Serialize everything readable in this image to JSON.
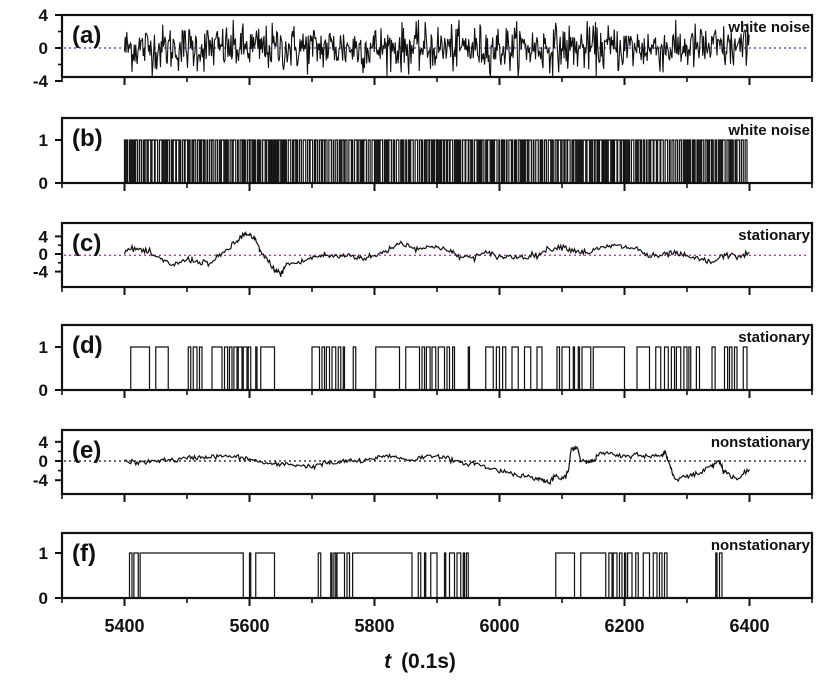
{
  "chart_data": {
    "type": "line",
    "xlabel_var": "t",
    "xlabel_unit": "(0.1s)",
    "xlim": [
      5300,
      6500
    ],
    "xticks": [
      5400,
      5600,
      5800,
      6000,
      6200,
      6400
    ],
    "grid": false,
    "panels": [
      {
        "tag": "(a)",
        "note": "white noise",
        "kind": "continuous",
        "ylim": [
          -4,
          4
        ],
        "yticks": [
          4,
          0,
          -4
        ],
        "ref_line": 0,
        "ref_color": "#3a3aa8",
        "x_start": 5400,
        "x_end": 6400,
        "description_values": {
          "style": "white-noise",
          "amplitude": 1.4
        }
      },
      {
        "tag": "(b)",
        "note": "white noise",
        "kind": "binary",
        "ylim": [
          0,
          1
        ],
        "yticks": [
          1,
          0
        ],
        "x_start": 5400,
        "x_end": 6400,
        "segments": "dense"
      },
      {
        "tag": "(c)",
        "note": "stationary",
        "kind": "continuous",
        "ylim": [
          -5,
          5
        ],
        "yticks": [
          4,
          0,
          -4
        ],
        "ref_line": -0.3,
        "ref_color": "#b03ab0",
        "x_start": 5400,
        "x_end": 6400,
        "points": [
          [
            5400,
            0.8
          ],
          [
            5420,
            1.2
          ],
          [
            5440,
            0.2
          ],
          [
            5460,
            -1.5
          ],
          [
            5480,
            -2.5
          ],
          [
            5500,
            -1.2
          ],
          [
            5520,
            -1.8
          ],
          [
            5540,
            -2.0
          ],
          [
            5560,
            0.5
          ],
          [
            5580,
            2.8
          ],
          [
            5590,
            4.5
          ],
          [
            5600,
            4.2
          ],
          [
            5610,
            3.0
          ],
          [
            5620,
            0.0
          ],
          [
            5640,
            -3.5
          ],
          [
            5650,
            -4.6
          ],
          [
            5660,
            -2.2
          ],
          [
            5680,
            -2.0
          ],
          [
            5700,
            -0.8
          ],
          [
            5720,
            -0.3
          ],
          [
            5740,
            -0.6
          ],
          [
            5760,
            -0.2
          ],
          [
            5780,
            -1.0
          ],
          [
            5800,
            -0.5
          ],
          [
            5820,
            0.8
          ],
          [
            5840,
            2.6
          ],
          [
            5860,
            1.6
          ],
          [
            5880,
            1.2
          ],
          [
            5900,
            1.9
          ],
          [
            5920,
            0.5
          ],
          [
            5940,
            -0.8
          ],
          [
            5960,
            -0.6
          ],
          [
            5980,
            0.2
          ],
          [
            6000,
            -0.6
          ],
          [
            6020,
            -0.7
          ],
          [
            6040,
            -0.6
          ],
          [
            6060,
            -0.2
          ],
          [
            6080,
            1.2
          ],
          [
            6100,
            1.7
          ],
          [
            6120,
            0.8
          ],
          [
            6140,
            0.3
          ],
          [
            6160,
            1.2
          ],
          [
            6180,
            1.9
          ],
          [
            6200,
            1.6
          ],
          [
            6220,
            1.2
          ],
          [
            6240,
            -0.6
          ],
          [
            6260,
            -0.4
          ],
          [
            6280,
            0.3
          ],
          [
            6300,
            -0.7
          ],
          [
            6320,
            -1.2
          ],
          [
            6340,
            -2.0
          ],
          [
            6360,
            -0.2
          ],
          [
            6380,
            -0.6
          ],
          [
            6400,
            0.2
          ]
        ]
      },
      {
        "tag": "(d)",
        "note": "stationary",
        "kind": "binary",
        "ylim": [
          0,
          1
        ],
        "yticks": [
          1,
          0
        ],
        "x_start": 5400,
        "x_end": 6400,
        "segments": [
          [
            5410,
            5440
          ],
          [
            5450,
            5470
          ],
          [
            5502,
            5506
          ],
          [
            5510,
            5516
          ],
          [
            5520,
            5524
          ],
          [
            5540,
            5556
          ],
          [
            5560,
            5565
          ],
          [
            5568,
            5572
          ],
          [
            5575,
            5580
          ],
          [
            5582,
            5588
          ],
          [
            5590,
            5596
          ],
          [
            5598,
            5602
          ],
          [
            5610,
            5612
          ],
          [
            5618,
            5640
          ],
          [
            5700,
            5712
          ],
          [
            5716,
            5720
          ],
          [
            5723,
            5728
          ],
          [
            5732,
            5738
          ],
          [
            5742,
            5746
          ],
          [
            5750,
            5752
          ],
          [
            5766,
            5770
          ],
          [
            5802,
            5840
          ],
          [
            5850,
            5872
          ],
          [
            5876,
            5880
          ],
          [
            5883,
            5889
          ],
          [
            5892,
            5898
          ],
          [
            5902,
            5912
          ],
          [
            5916,
            5920
          ],
          [
            5925,
            5928
          ],
          [
            5950,
            5952
          ],
          [
            5978,
            5990
          ],
          [
            5995,
            6000
          ],
          [
            6005,
            6010
          ],
          [
            6020,
            6030
          ],
          [
            6040,
            6050
          ],
          [
            6060,
            6068
          ],
          [
            6092,
            6096
          ],
          [
            6100,
            6112
          ],
          [
            6118,
            6120
          ],
          [
            6126,
            6128
          ],
          [
            6132,
            6146
          ],
          [
            6150,
            6200
          ],
          [
            6220,
            6240
          ],
          [
            6250,
            6258
          ],
          [
            6264,
            6270
          ],
          [
            6275,
            6280
          ],
          [
            6283,
            6290
          ],
          [
            6295,
            6300
          ],
          [
            6303,
            6306
          ],
          [
            6315,
            6320
          ],
          [
            6340,
            6345
          ],
          [
            6360,
            6365
          ],
          [
            6368,
            6372
          ],
          [
            6376,
            6380
          ],
          [
            6390,
            6396
          ]
        ]
      },
      {
        "tag": "(e)",
        "note": "nonstationary",
        "kind": "continuous",
        "ylim": [
          -5,
          5
        ],
        "yticks": [
          4,
          0,
          -4
        ],
        "ref_line": 0,
        "ref_color": "#111111",
        "x_start": 5400,
        "x_end": 6400,
        "points": [
          [
            5400,
            0.0
          ],
          [
            5420,
            -0.4
          ],
          [
            5440,
            -0.2
          ],
          [
            5460,
            0.3
          ],
          [
            5480,
            0.1
          ],
          [
            5500,
            0.6
          ],
          [
            5520,
            0.8
          ],
          [
            5540,
            0.9
          ],
          [
            5560,
            1.0
          ],
          [
            5580,
            0.8
          ],
          [
            5600,
            0.4
          ],
          [
            5620,
            -0.3
          ],
          [
            5640,
            -0.8
          ],
          [
            5660,
            -0.6
          ],
          [
            5680,
            -0.9
          ],
          [
            5700,
            -1.2
          ],
          [
            5720,
            -0.4
          ],
          [
            5740,
            -0.5
          ],
          [
            5760,
            0.2
          ],
          [
            5780,
            -0.2
          ],
          [
            5800,
            0.6
          ],
          [
            5820,
            1.2
          ],
          [
            5840,
            0.6
          ],
          [
            5860,
            0.2
          ],
          [
            5880,
            0.9
          ],
          [
            5900,
            1.2
          ],
          [
            5920,
            0.4
          ],
          [
            5940,
            -0.6
          ],
          [
            5960,
            -0.4
          ],
          [
            5980,
            -1.4
          ],
          [
            6000,
            -2.0
          ],
          [
            6020,
            -2.5
          ],
          [
            6040,
            -3.2
          ],
          [
            6060,
            -3.6
          ],
          [
            6070,
            -4.0
          ],
          [
            6080,
            -4.6
          ],
          [
            6090,
            -3.0
          ],
          [
            6100,
            -4.0
          ],
          [
            6110,
            -2.2
          ],
          [
            6115,
            2.6
          ],
          [
            6125,
            2.8
          ],
          [
            6130,
            0.0
          ],
          [
            6140,
            0.2
          ],
          [
            6150,
            -0.2
          ],
          [
            6160,
            1.6
          ],
          [
            6180,
            1.4
          ],
          [
            6200,
            0.8
          ],
          [
            6220,
            1.5
          ],
          [
            6240,
            0.8
          ],
          [
            6260,
            1.2
          ],
          [
            6265,
            2.0
          ],
          [
            6270,
            0.0
          ],
          [
            6280,
            -3.6
          ],
          [
            6300,
            -3.2
          ],
          [
            6320,
            -2.6
          ],
          [
            6340,
            -0.8
          ],
          [
            6350,
            0.2
          ],
          [
            6360,
            -2.2
          ],
          [
            6380,
            -3.8
          ],
          [
            6400,
            -1.8
          ]
        ]
      },
      {
        "tag": "(f)",
        "note": "nonstationary",
        "kind": "binary",
        "ylim": [
          0,
          1
        ],
        "yticks": [
          1,
          0
        ],
        "x_start": 5400,
        "x_end": 6400,
        "segments": [
          [
            5408,
            5412
          ],
          [
            5415,
            5422
          ],
          [
            5425,
            5590
          ],
          [
            5600,
            5602
          ],
          [
            5610,
            5640
          ],
          [
            5710,
            5714
          ],
          [
            5730,
            5732
          ],
          [
            5735,
            5738
          ],
          [
            5740,
            5752
          ],
          [
            5756,
            5760
          ],
          [
            5765,
            5860
          ],
          [
            5870,
            5874
          ],
          [
            5880,
            5882
          ],
          [
            5890,
            5900
          ],
          [
            5912,
            5914
          ],
          [
            5920,
            5928
          ],
          [
            5932,
            5938
          ],
          [
            5942,
            5944
          ],
          [
            5947,
            5950
          ],
          [
            6090,
            6120
          ],
          [
            6130,
            6170
          ],
          [
            6175,
            6180
          ],
          [
            6182,
            6188
          ],
          [
            6192,
            6196
          ],
          [
            6200,
            6202
          ],
          [
            6205,
            6212
          ],
          [
            6218,
            6222
          ],
          [
            6230,
            6240
          ],
          [
            6246,
            6252
          ],
          [
            6256,
            6260
          ],
          [
            6264,
            6268
          ],
          [
            6346,
            6348
          ],
          [
            6352,
            6356
          ]
        ]
      }
    ]
  }
}
